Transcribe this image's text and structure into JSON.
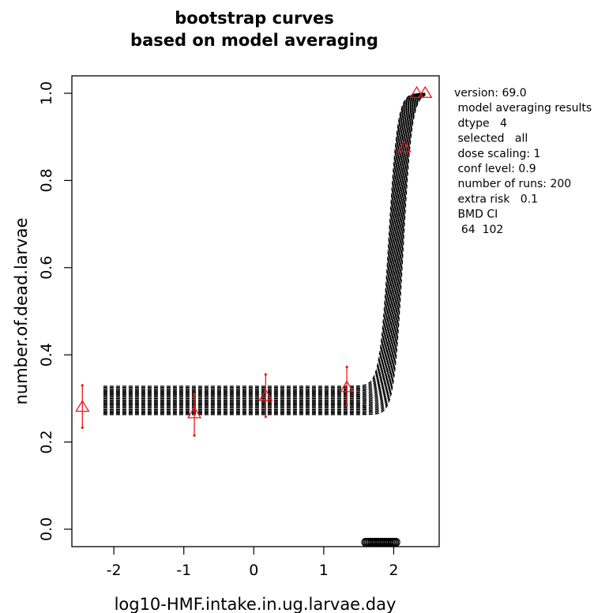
{
  "chart_data": {
    "type": "line",
    "title": [
      "bootstrap curves",
      "based on model averaging"
    ],
    "xlabel": "log10-HMF.intake.in.ug.larvae.day",
    "ylabel": "number.of.dead.larvae",
    "xlim": [
      -2.6,
      2.65
    ],
    "ylim": [
      -0.04,
      1.04
    ],
    "x_ticks": [
      -2,
      -1,
      0,
      1,
      2
    ],
    "x_tick_labels": [
      "-2",
      "-1",
      "0",
      "1",
      "2"
    ],
    "y_ticks": [
      0.0,
      0.2,
      0.4,
      0.6,
      0.8,
      1.0
    ],
    "y_tick_labels": [
      "0.0",
      "0.2",
      "0.4",
      "0.6",
      "0.8",
      "1.0"
    ],
    "curve_color": "#000000",
    "observed_color": "#e8191b",
    "bootstrap": {
      "runs": 200,
      "shown_curves": 24,
      "x_start": -2.15,
      "background_range": [
        0.263,
        0.328
      ],
      "midpoint_range": [
        1.93,
        2.13
      ],
      "top": 1.0,
      "x_end": 2.45
    },
    "observed": [
      {
        "x": -2.45,
        "y": 0.28,
        "low": 0.233,
        "high": 0.33
      },
      {
        "x": -0.85,
        "y": 0.265,
        "low": 0.215,
        "high": 0.31
      },
      {
        "x": 0.17,
        "y": 0.305,
        "low": 0.258,
        "high": 0.355
      },
      {
        "x": 1.33,
        "y": 0.325,
        "low": 0.285,
        "high": 0.372
      },
      {
        "x": 2.15,
        "y": 0.875,
        "low": 0.875,
        "high": 0.875
      },
      {
        "x": 2.33,
        "y": 1.0,
        "low": 1.0,
        "high": 1.0
      },
      {
        "x": 2.45,
        "y": 1.0,
        "low": 1.0,
        "high": 1.0
      }
    ],
    "bmd_markers": {
      "x_range": [
        1.6,
        2.03
      ],
      "count": 24,
      "y": -0.03
    }
  },
  "info": {
    "lines": [
      "version: 69.0",
      " model averaging results",
      " dtype   4",
      " selected   all",
      " dose scaling: 1",
      " conf level: 0.9",
      " number of runs: 200",
      " extra risk   0.1",
      " BMD CI",
      "  64  102"
    ]
  }
}
